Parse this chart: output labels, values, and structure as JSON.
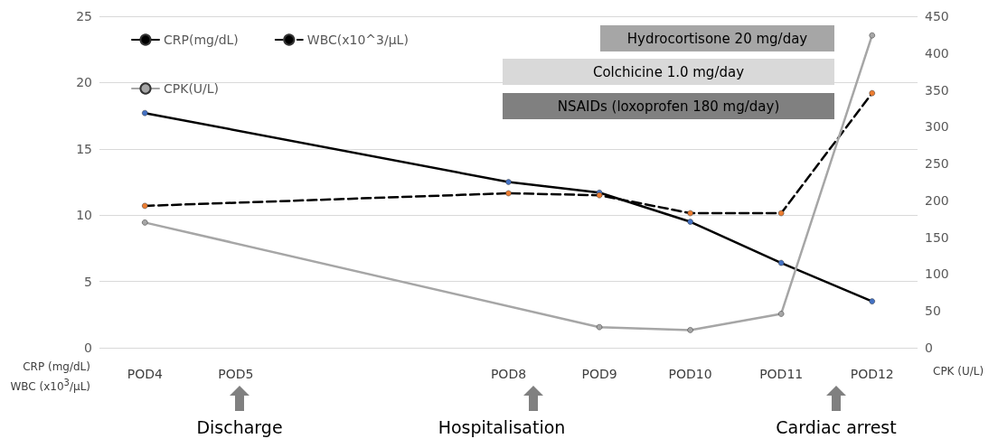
{
  "chart_data": {
    "type": "line",
    "ylabel": "CRP (mg/dL)\nWBC (x10$^{3}$/μL)",
    "y2label": "CPK (U/L)",
    "categories": [
      "POD4",
      "POD5",
      null,
      null,
      "POD8",
      "POD9",
      "POD10",
      "POD11",
      "POD12"
    ],
    "series": [
      {
        "name": "CRP(mg/dL)",
        "color": "#000000",
        "line_style": "solid",
        "colors": [
          "#4472c4",
          "#4472c4",
          "#4472c4",
          "#4472c4",
          "#4472c4",
          "#4472c4",
          "#4472c4",
          "#4472c4",
          "#4472c4"
        ],
        "values": [
          17.7,
          null,
          null,
          null,
          12.5,
          11.7,
          9.5,
          6.4,
          3.5
        ]
      },
      {
        "name": "WBC(x10^3/μL)",
        "color": "#000000",
        "line_style": "dashed",
        "colors": [
          "#ed7d31",
          "#ed7d31",
          "#ed7d31",
          "#ed7d31",
          "#ed7d31",
          "#ed7d31",
          "#ed7d31",
          "#ed7d31",
          "#ed7d31"
        ],
        "values": [
          10.7,
          null,
          null,
          null,
          11.65,
          11.5,
          10.15,
          10.15,
          19.2
        ]
      },
      {
        "name": "CPK(U/L)",
        "color": "#a6a6a6",
        "line_style": "solid",
        "axis": "y2",
        "values": [
          170,
          null,
          null,
          null,
          null,
          28,
          24,
          46,
          424
        ]
      }
    ],
    "ylim": [
      0,
      25
    ],
    "yticks": [
      0,
      5,
      10,
      15,
      20,
      25
    ],
    "y2lim": [
      0,
      450
    ],
    "y2ticks": [
      0,
      50,
      100,
      150,
      200,
      250,
      300,
      350,
      400,
      450
    ],
    "grid": "y",
    "legend": "top left",
    "marker": "circle",
    "annotations": [
      "Hydrocortisone 20 mg/day",
      "Colchicine 1.0 mg/day",
      "NSAIDs (loxoprofen 180 mg/day)",
      "Discharge",
      "Hospitalisation",
      "Cardiac arrest"
    ]
  }
}
